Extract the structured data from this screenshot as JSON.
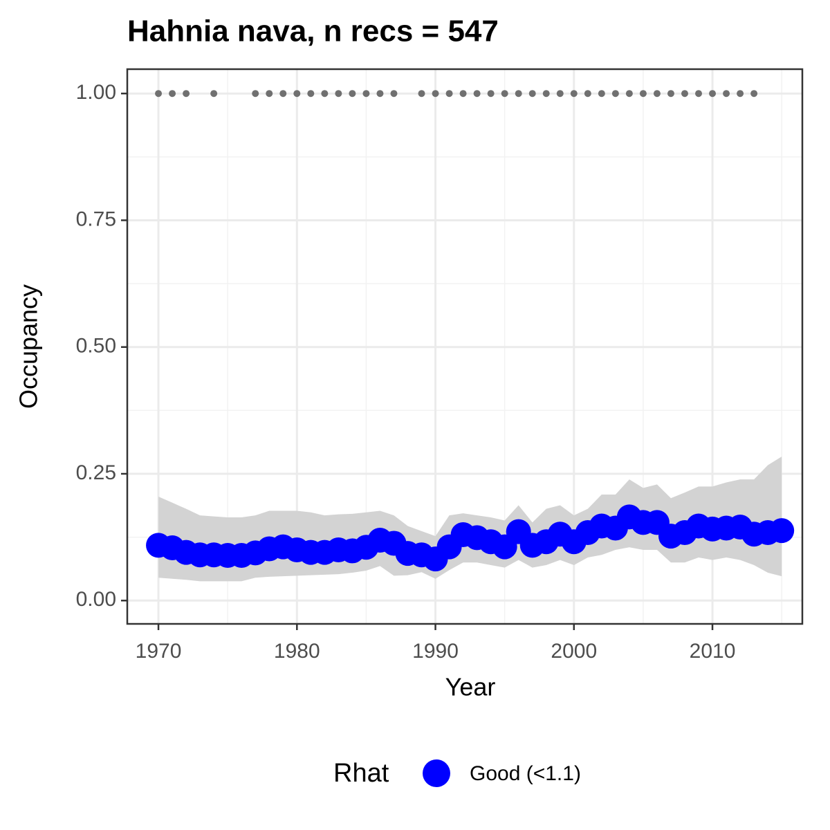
{
  "chart_data": {
    "type": "line",
    "title": "Hahnia nava, n recs = 547",
    "x_label": "Year",
    "y_label": "Occupancy",
    "legend_title": "Rhat",
    "x": [
      1970,
      1971,
      1972,
      1973,
      1974,
      1975,
      1976,
      1977,
      1978,
      1979,
      1980,
      1981,
      1982,
      1983,
      1984,
      1985,
      1986,
      1987,
      1988,
      1989,
      1990,
      1991,
      1992,
      1993,
      1994,
      1995,
      1996,
      1997,
      1998,
      1999,
      2000,
      2001,
      2002,
      2003,
      2004,
      2005,
      2006,
      2007,
      2008,
      2009,
      2010,
      2011,
      2012,
      2013,
      2014,
      2015
    ],
    "series": [
      {
        "name": "Good (<1.1)",
        "color": "#0000ff",
        "values": [
          0.109,
          0.104,
          0.095,
          0.09,
          0.09,
          0.089,
          0.089,
          0.094,
          0.102,
          0.106,
          0.1,
          0.095,
          0.095,
          0.1,
          0.098,
          0.105,
          0.119,
          0.113,
          0.093,
          0.09,
          0.082,
          0.106,
          0.13,
          0.124,
          0.116,
          0.106,
          0.136,
          0.109,
          0.116,
          0.131,
          0.116,
          0.134,
          0.147,
          0.143,
          0.165,
          0.154,
          0.154,
          0.127,
          0.134,
          0.147,
          0.141,
          0.143,
          0.145,
          0.131,
          0.134,
          0.138
        ]
      }
    ],
    "ribbon_color": "#d3d3d3",
    "upper": [
      0.205,
      0.193,
      0.181,
      0.168,
      0.166,
      0.164,
      0.164,
      0.168,
      0.177,
      0.177,
      0.177,
      0.174,
      0.168,
      0.17,
      0.171,
      0.174,
      0.177,
      0.168,
      0.147,
      0.137,
      0.127,
      0.168,
      0.172,
      0.168,
      0.164,
      0.158,
      0.188,
      0.154,
      0.181,
      0.188,
      0.168,
      0.181,
      0.209,
      0.209,
      0.239,
      0.222,
      0.229,
      0.202,
      0.213,
      0.225,
      0.225,
      0.233,
      0.239,
      0.239,
      0.267,
      0.284
    ],
    "lower": [
      0.045,
      0.043,
      0.041,
      0.038,
      0.038,
      0.038,
      0.038,
      0.045,
      0.047,
      0.048,
      0.049,
      0.05,
      0.051,
      0.052,
      0.055,
      0.059,
      0.068,
      0.049,
      0.05,
      0.056,
      0.043,
      0.06,
      0.075,
      0.075,
      0.07,
      0.065,
      0.08,
      0.065,
      0.07,
      0.08,
      0.07,
      0.085,
      0.09,
      0.1,
      0.105,
      0.1,
      0.1,
      0.075,
      0.075,
      0.085,
      0.08,
      0.085,
      0.08,
      0.07,
      0.055,
      0.048
    ],
    "observations": {
      "color": "#707070",
      "x": [
        1970,
        1971,
        1972,
        1974,
        1977,
        1978,
        1979,
        1980,
        1981,
        1982,
        1983,
        1984,
        1985,
        1986,
        1987,
        1989,
        1990,
        1991,
        1992,
        1993,
        1994,
        1995,
        1996,
        1997,
        1998,
        1999,
        2000,
        2001,
        2002,
        2003,
        2004,
        2005,
        2006,
        2007,
        2008,
        2009,
        2010,
        2011,
        2012,
        2013
      ],
      "values": [
        1,
        1,
        1,
        1,
        1,
        1,
        1,
        1,
        1,
        1,
        1,
        1,
        1,
        1,
        1,
        1,
        1,
        1,
        1,
        1,
        1,
        1,
        1,
        1,
        1,
        1,
        1,
        1,
        1,
        1,
        1,
        1,
        1,
        1,
        1,
        1,
        1,
        1,
        1,
        1
      ]
    },
    "xlim": [
      1967.75,
      2016.49
    ],
    "ylim": [
      -0.046,
      1.048
    ],
    "xticks": [
      1970,
      1980,
      1990,
      2000,
      2010
    ],
    "yticks": [
      {
        "value": 0,
        "label": "0.00"
      },
      {
        "value": 0.25,
        "label": "0.25"
      },
      {
        "value": 0.5,
        "label": "0.50"
      },
      {
        "value": 0.75,
        "label": "0.75"
      },
      {
        "value": 1,
        "label": "1.00"
      }
    ],
    "xminor": [
      1975,
      1985,
      1995,
      2005,
      2015
    ],
    "yminor": [
      0.125,
      0.375,
      0.625,
      0.875
    ],
    "grid": true
  }
}
